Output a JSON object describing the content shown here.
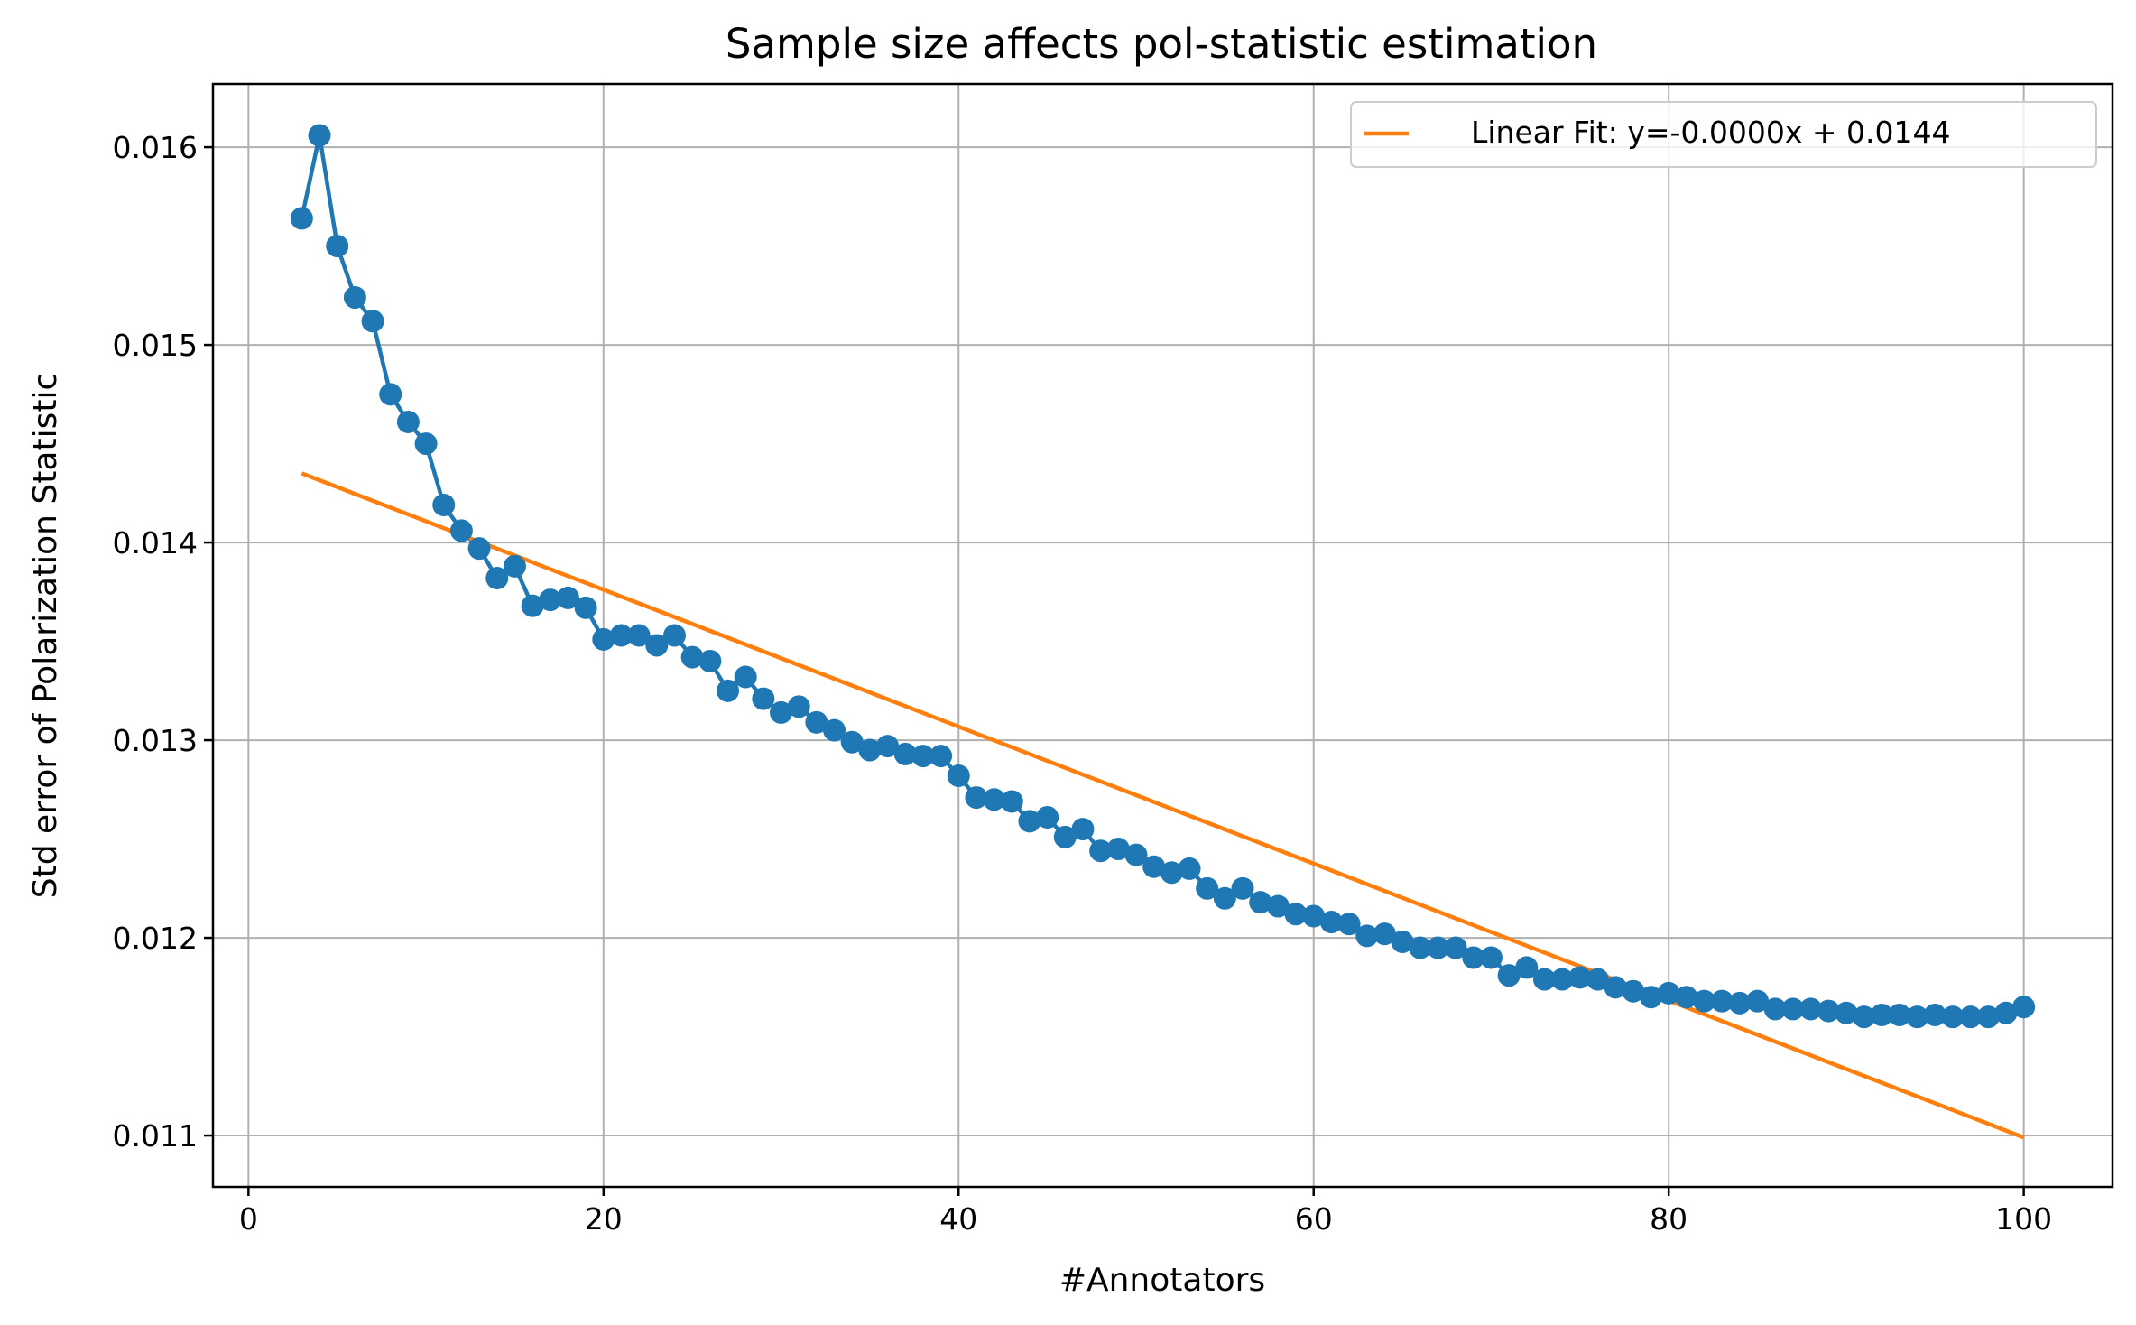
{
  "chart_data": {
    "type": "line",
    "title": "Sample size affects pol-statistic estimation",
    "xlabel": "#Annotators",
    "ylabel": "Std error of Polarization Statistic",
    "xlim": [
      -2,
      105
    ],
    "ylim": [
      0.01074,
      0.01632
    ],
    "xticks": [
      0,
      20,
      40,
      60,
      80,
      100
    ],
    "xtick_labels": [
      "0",
      "20",
      "40",
      "60",
      "80",
      "100"
    ],
    "yticks": [
      0.011,
      0.012,
      0.013,
      0.014,
      0.015,
      0.016
    ],
    "ytick_labels": [
      "0.011",
      "0.012",
      "0.013",
      "0.014",
      "0.015",
      "0.016"
    ],
    "grid": true,
    "legend_position": "top-right",
    "series": [
      {
        "color": "#1f77b4",
        "marker": "circle",
        "x": [
          3,
          4,
          5,
          6,
          7,
          8,
          9,
          10,
          11,
          12,
          13,
          14,
          15,
          16,
          17,
          18,
          19,
          20,
          21,
          22,
          23,
          24,
          25,
          26,
          27,
          28,
          29,
          30,
          31,
          32,
          33,
          34,
          35,
          36,
          37,
          38,
          39,
          40,
          41,
          42,
          43,
          44,
          45,
          46,
          47,
          48,
          49,
          50,
          51,
          52,
          53,
          54,
          55,
          56,
          57,
          58,
          59,
          60,
          61,
          62,
          63,
          64,
          65,
          66,
          67,
          68,
          69,
          70,
          71,
          72,
          73,
          74,
          75,
          76,
          77,
          78,
          79,
          80,
          81,
          82,
          83,
          84,
          85,
          86,
          87,
          88,
          89,
          90,
          91,
          92,
          93,
          94,
          95,
          96,
          97,
          98,
          99,
          100
        ],
        "y": [
          0.01564,
          0.01606,
          0.0155,
          0.01524,
          0.01512,
          0.01475,
          0.01461,
          0.0145,
          0.01419,
          0.01406,
          0.01397,
          0.01382,
          0.01388,
          0.01368,
          0.01371,
          0.01372,
          0.01367,
          0.01351,
          0.01353,
          0.01353,
          0.01348,
          0.01353,
          0.01342,
          0.0134,
          0.01325,
          0.01332,
          0.01321,
          0.01314,
          0.01317,
          0.01309,
          0.01305,
          0.01299,
          0.01295,
          0.01297,
          0.01293,
          0.01292,
          0.01292,
          0.01282,
          0.01271,
          0.0127,
          0.01269,
          0.01259,
          0.01261,
          0.01251,
          0.01255,
          0.01244,
          0.01245,
          0.01242,
          0.01236,
          0.01233,
          0.01235,
          0.01225,
          0.0122,
          0.01225,
          0.01218,
          0.01216,
          0.01212,
          0.01211,
          0.01208,
          0.01207,
          0.01201,
          0.01202,
          0.01198,
          0.01195,
          0.01195,
          0.01195,
          0.0119,
          0.0119,
          0.01181,
          0.01185,
          0.01179,
          0.01179,
          0.0118,
          0.01179,
          0.01175,
          0.01173,
          0.0117,
          0.01172,
          0.0117,
          0.01168,
          0.01168,
          0.01167,
          0.01168,
          0.01164,
          0.01164,
          0.01164,
          0.01163,
          0.01162,
          0.0116,
          0.01161,
          0.01161,
          0.0116,
          0.01161,
          0.0116,
          0.0116,
          0.0116,
          0.01162,
          0.01165
        ]
      },
      {
        "name": "Linear Fit: y=-0.0000x + 0.0144",
        "color": "#ff7f0e",
        "marker": "none",
        "x": [
          3,
          100
        ],
        "y": [
          0.01435,
          0.01099
        ]
      }
    ]
  }
}
